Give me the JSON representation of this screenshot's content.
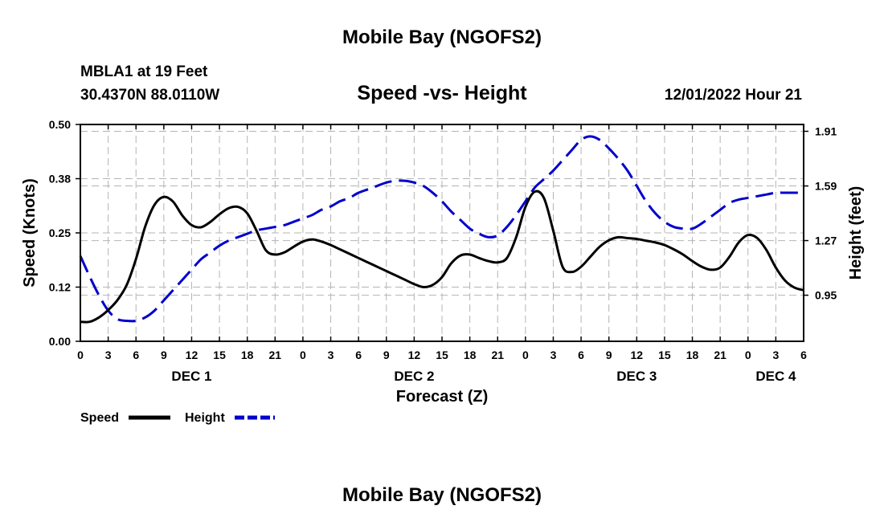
{
  "header": {
    "title": "Mobile Bay (NGOFS2)",
    "station_line": "MBLA1 at 19 Feet",
    "coords_line": "30.4370N  88.0110W",
    "subtitle": "Speed -vs- Height",
    "timestamp": "12/01/2022 Hour 21"
  },
  "footer": {
    "title": "Mobile Bay (NGOFS2)"
  },
  "legend": {
    "speed_label": "Speed",
    "height_label": "Height"
  },
  "colors": {
    "speed": "#000000",
    "height": "#0000cc"
  },
  "chart_data": {
    "type": "line",
    "title": "Speed -vs- Height",
    "xlabel": "Forecast (Z)",
    "ylabel": "Speed (Knots)",
    "y2label": "Height (feet)",
    "x_unit": "hours from Dec 1 00Z",
    "xlim": [
      0,
      78
    ],
    "ylim": [
      0,
      0.5
    ],
    "y2lim": [
      0.68,
      1.95
    ],
    "yticks": [
      0,
      0.125,
      0.25,
      0.375,
      0.5
    ],
    "ytick_labels": [
      "0.00",
      "0.12",
      "0.25",
      "0.38",
      "0.50"
    ],
    "y2ticks": [
      0.95,
      1.27,
      1.59,
      1.91
    ],
    "y2tick_labels": [
      "0.95",
      "1.27",
      "1.59",
      "1.91"
    ],
    "xticks": [
      0,
      3,
      6,
      9,
      12,
      15,
      18,
      21,
      24,
      27,
      30,
      33,
      36,
      39,
      42,
      45,
      48,
      51,
      54,
      57,
      60,
      63,
      66,
      69,
      72,
      75,
      78
    ],
    "xtick_labels": [
      "0",
      "3",
      "6",
      "9",
      "12",
      "15",
      "18",
      "21",
      "0",
      "3",
      "6",
      "9",
      "12",
      "15",
      "18",
      "21",
      "0",
      "3",
      "6",
      "9",
      "12",
      "15",
      "18",
      "21",
      "0",
      "3",
      "6"
    ],
    "day_labels": [
      {
        "x": 12,
        "label": "DEC 1"
      },
      {
        "x": 36,
        "label": "DEC 2"
      },
      {
        "x": 60,
        "label": "DEC 3"
      },
      {
        "x": 75,
        "label": "DEC 4"
      }
    ],
    "series": [
      {
        "name": "Speed",
        "axis": "left",
        "x": [
          0,
          1,
          2,
          3,
          4,
          5,
          6,
          7,
          8,
          9,
          10,
          11,
          12,
          13,
          14,
          15,
          16,
          17,
          18,
          19,
          20,
          21,
          22,
          23,
          24,
          25,
          26,
          27,
          28,
          29,
          30,
          31,
          32,
          33,
          34,
          35,
          36,
          37,
          38,
          39,
          40,
          41,
          42,
          43,
          44,
          45,
          46,
          47,
          48,
          49,
          50,
          51,
          52,
          53,
          54,
          55,
          56,
          57,
          58,
          59,
          60,
          61,
          62,
          63,
          64,
          65,
          66,
          67,
          68,
          69,
          70,
          71,
          72,
          73,
          74,
          75,
          76,
          77,
          78
        ],
        "values": [
          0.045,
          0.045,
          0.055,
          0.072,
          0.095,
          0.13,
          0.19,
          0.265,
          0.315,
          0.333,
          0.322,
          0.29,
          0.268,
          0.263,
          0.275,
          0.293,
          0.307,
          0.31,
          0.295,
          0.255,
          0.21,
          0.2,
          0.205,
          0.218,
          0.23,
          0.235,
          0.23,
          0.222,
          0.212,
          0.202,
          0.192,
          0.182,
          0.172,
          0.162,
          0.152,
          0.142,
          0.132,
          0.125,
          0.13,
          0.148,
          0.18,
          0.198,
          0.2,
          0.192,
          0.185,
          0.182,
          0.192,
          0.24,
          0.31,
          0.345,
          0.33,
          0.255,
          0.172,
          0.16,
          0.172,
          0.195,
          0.218,
          0.233,
          0.24,
          0.238,
          0.236,
          0.232,
          0.228,
          0.222,
          0.212,
          0.2,
          0.185,
          0.172,
          0.165,
          0.17,
          0.195,
          0.228,
          0.245,
          0.238,
          0.21,
          0.17,
          0.14,
          0.124,
          0.118
        ]
      },
      {
        "name": "Height",
        "axis": "right",
        "x": [
          0,
          1,
          2,
          3,
          4,
          5,
          6,
          7,
          8,
          9,
          10,
          11,
          12,
          13,
          14,
          15,
          16,
          17,
          18,
          19,
          20,
          21,
          22,
          23,
          24,
          25,
          26,
          27,
          28,
          29,
          30,
          31,
          32,
          33,
          34,
          35,
          36,
          37,
          38,
          39,
          40,
          41,
          42,
          43,
          44,
          45,
          46,
          47,
          48,
          49,
          50,
          51,
          52,
          53,
          54,
          55,
          56,
          57,
          58,
          59,
          60,
          61,
          62,
          63,
          64,
          65,
          66,
          67,
          68,
          69,
          70,
          71,
          72,
          73,
          74,
          75,
          76,
          77,
          78
        ],
        "values": [
          1.18,
          1.06,
          0.95,
          0.86,
          0.81,
          0.8,
          0.8,
          0.82,
          0.86,
          0.92,
          0.98,
          1.04,
          1.1,
          1.16,
          1.2,
          1.24,
          1.27,
          1.29,
          1.31,
          1.33,
          1.34,
          1.35,
          1.36,
          1.38,
          1.4,
          1.42,
          1.45,
          1.47,
          1.5,
          1.52,
          1.55,
          1.57,
          1.59,
          1.61,
          1.62,
          1.62,
          1.61,
          1.59,
          1.55,
          1.5,
          1.44,
          1.39,
          1.34,
          1.31,
          1.29,
          1.3,
          1.35,
          1.42,
          1.5,
          1.58,
          1.63,
          1.68,
          1.74,
          1.8,
          1.86,
          1.88,
          1.86,
          1.81,
          1.75,
          1.68,
          1.59,
          1.5,
          1.43,
          1.38,
          1.35,
          1.34,
          1.34,
          1.37,
          1.41,
          1.45,
          1.49,
          1.51,
          1.52,
          1.53,
          1.54,
          1.55,
          1.55,
          1.55,
          1.55
        ]
      }
    ]
  }
}
